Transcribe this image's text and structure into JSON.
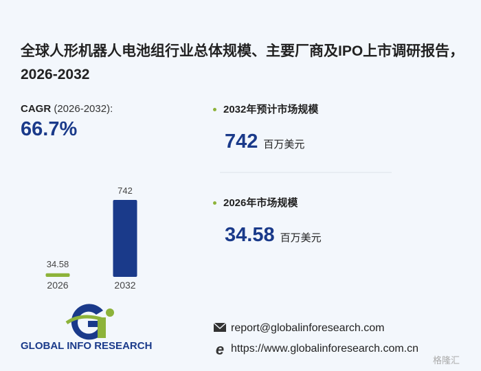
{
  "header": {
    "title": "全球人形机器人电池组行业总体规模、主要厂商及IPO上市调研报告，2026-2032"
  },
  "cagr": {
    "label": "CAGR",
    "period": "(2026-2032):",
    "value": "66.7%"
  },
  "chart_data": {
    "type": "bar",
    "categories": [
      "2026",
      "2032"
    ],
    "values": [
      34.58,
      742
    ],
    "colors": [
      "#8db33a",
      "#1a3a8a"
    ]
  },
  "stats": [
    {
      "label": "2032年预计市场规模",
      "unit": "百万美元"
    },
    {
      "label": "2026年市场规模",
      "unit": "百万美元"
    }
  ],
  "footer": {
    "brand": "GLOBAL INFO RESEARCH",
    "email": "report@globalinforesearch.com",
    "url": "https://www.globalinforesearch.com.cn",
    "watermark": "格隆汇"
  }
}
